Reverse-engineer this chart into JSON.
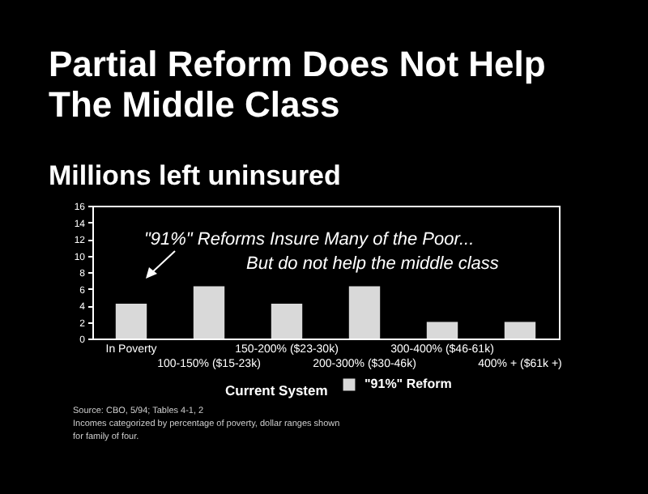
{
  "chart_data": {
    "type": "bar",
    "title": [
      "Partial Reform Does Not Help",
      "The Middle Class"
    ],
    "subtitle": "Millions left uninsured",
    "categories": [
      "In Poverty",
      "100-150% ($15-23k)",
      "150-200% ($23-30k)",
      "200-300% ($30-46k)",
      "300-400% ($46-61k)",
      "400% + ($61k +)"
    ],
    "series": [
      {
        "name": "\"91%\" Reform",
        "color": "#d9d9d9",
        "values": [
          4.2,
          6.3,
          4.2,
          6.3,
          2,
          2
        ]
      }
    ],
    "ylim": [
      0,
      16
    ],
    "yticks": [
      0,
      2,
      4,
      6,
      8,
      10,
      12,
      14,
      16
    ],
    "grid": false,
    "legend": "bottom",
    "annotations": [
      "\"91%\" Reforms Insure Many of the Poor...",
      "But do not help the middle class",
      "Current System",
      "Source: CBO, 5/94; Tables 4-1, 2",
      "Incomes categorized by percentage of poverty, dollar ranges shown",
      "for family of four."
    ]
  }
}
